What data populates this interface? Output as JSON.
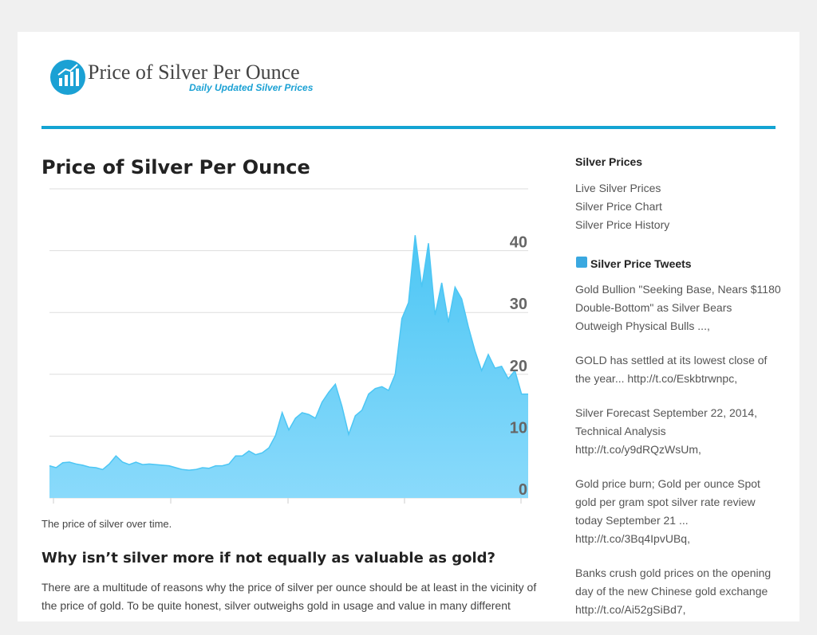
{
  "header": {
    "title": "Price of Silver Per Ounce",
    "tagline": "Daily Updated Silver Prices"
  },
  "article": {
    "heading": "Price of Silver Per Ounce",
    "caption": "The price of silver over time.",
    "subheading": "Why isn’t silver more if not equally as valuable as gold?",
    "paragraph_lines": [
      "There are a multitude of reasons why the price of silver per ounce should be at least in the vicinity of",
      "the price of gold. To be quite honest, silver outweighs gold in usage and value in many different"
    ]
  },
  "sidebar": {
    "links_title": "Silver Prices",
    "links": [
      "Live Silver Prices",
      "Silver Price Chart",
      "Silver Price History"
    ],
    "tweets_title": "Silver Price Tweets",
    "tweets": [
      [
        "Gold Bullion \"Seeking Base, Nears $1180",
        "Double-Bottom\" as Silver Bears",
        "Outweigh Physical Bulls ...,"
      ],
      [
        "GOLD has settled at its lowest close of",
        "the year... http://t.co/Eskbtrwnpc,"
      ],
      [
        "Silver Forecast September 22, 2014,",
        "Technical Analysis",
        "http://t.co/y9dRQzWsUm,"
      ],
      [
        "Gold price burn; Gold per ounce Spot",
        "gold per gram spot silver rate review",
        "today September 21 ...",
        "http://t.co/3Bq4IpvUBq,"
      ],
      [
        "Banks crush gold prices on the opening",
        "day of the new Chinese gold exchange",
        "http://t.co/Ai52gSiBd7,"
      ]
    ]
  },
  "chart_data": {
    "type": "area",
    "color": "#4cc6f4",
    "grid": true,
    "ylim": [
      0,
      50
    ],
    "yticks": [
      0,
      10,
      20,
      30,
      40
    ],
    "values": [
      5.2,
      4.9,
      5.7,
      5.8,
      5.5,
      5.3,
      5.0,
      4.9,
      4.6,
      5.5,
      6.8,
      5.8,
      5.4,
      5.8,
      5.4,
      5.5,
      5.4,
      5.3,
      5.2,
      4.9,
      4.6,
      4.5,
      4.6,
      4.9,
      4.8,
      5.2,
      5.2,
      5.5,
      6.8,
      6.8,
      7.6,
      7.0,
      7.3,
      8.1,
      10.1,
      13.8,
      11.0,
      12.9,
      13.8,
      13.5,
      12.9,
      15.5,
      17.1,
      18.4,
      14.8,
      10.3,
      13.3,
      14.2,
      16.8,
      17.7,
      18.0,
      17.4,
      20.0,
      29.0,
      31.6,
      42.5,
      34.1,
      41.2,
      29.6,
      34.8,
      28.4,
      34.1,
      32.2,
      27.7,
      23.8,
      20.6,
      23.2,
      21.0,
      21.3,
      19.3,
      20.6,
      16.8,
      16.8
    ]
  }
}
